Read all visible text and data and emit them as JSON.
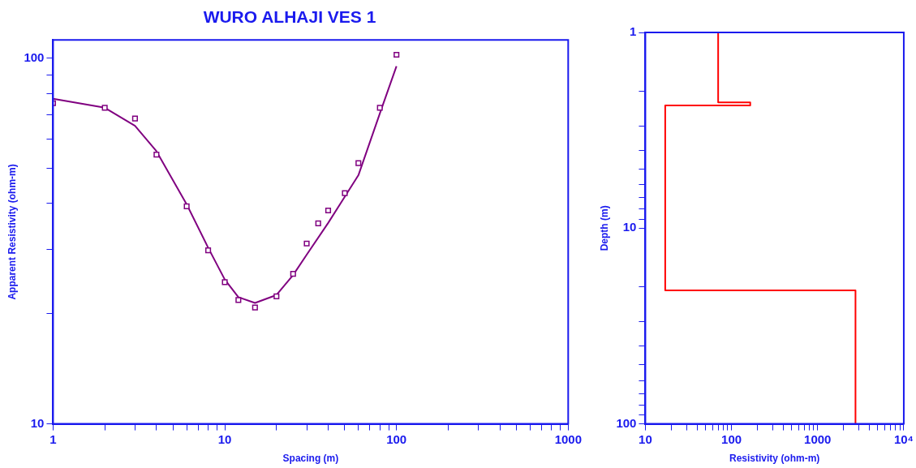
{
  "chart_data": [
    {
      "type": "scatter",
      "title": "WURO ALHAJI VES 1",
      "xlabel": "Spacing (m)",
      "ylabel": "Apparent Resistivity (ohm-m)",
      "log": "xy",
      "grid": false,
      "legend": false,
      "xlim": [
        1,
        1000
      ],
      "ylim": [
        10,
        112
      ],
      "xticks": [
        1,
        {
          "value": 2,
          "label": null
        },
        {
          "value": 3,
          "label": null
        },
        {
          "value": 4,
          "label": null
        },
        {
          "value": 5,
          "label": null
        },
        {
          "value": 6,
          "label": null
        },
        {
          "value": 7,
          "label": null
        },
        {
          "value": 8,
          "label": null
        },
        {
          "value": 9,
          "label": null
        },
        10,
        {
          "value": 20,
          "label": null
        },
        {
          "value": 30,
          "label": null
        },
        {
          "value": 40,
          "label": null
        },
        {
          "value": 50,
          "label": null
        },
        {
          "value": 60,
          "label": null
        },
        {
          "value": 70,
          "label": null
        },
        {
          "value": 80,
          "label": null
        },
        {
          "value": 90,
          "label": null
        },
        100,
        {
          "value": 200,
          "label": null
        },
        {
          "value": 300,
          "label": null
        },
        {
          "value": 400,
          "label": null
        },
        {
          "value": 500,
          "label": null
        },
        {
          "value": 600,
          "label": null
        },
        {
          "value": 700,
          "label": null
        },
        {
          "value": 800,
          "label": null
        },
        {
          "value": 900,
          "label": null
        },
        1000
      ],
      "yticks": [
        10,
        {
          "value": 20,
          "label": null
        },
        {
          "value": 30,
          "label": null
        },
        {
          "value": 40,
          "label": null
        },
        {
          "value": 50,
          "label": null
        },
        {
          "value": 60,
          "label": null
        },
        {
          "value": 70,
          "label": null
        },
        {
          "value": 80,
          "label": null
        },
        {
          "value": 90,
          "label": null
        },
        100
      ],
      "series": [
        {
          "marker": "square",
          "color": "#800080",
          "x": [
            1,
            2,
            3,
            4,
            6,
            8,
            10,
            12,
            15,
            20,
            25,
            30,
            35,
            40,
            50,
            60,
            80,
            100
          ],
          "values": [
            75.2,
            73.1,
            68.3,
            54.4,
            39.3,
            29.8,
            24.4,
            21.8,
            20.8,
            22.3,
            25.7,
            31.1,
            35.3,
            38.3,
            42.7,
            51.6,
            73.1,
            102
          ]
        },
        {
          "type": "line",
          "marker": "none",
          "color": "#800080",
          "x": [
            1,
            2,
            3,
            4,
            6,
            8,
            10,
            12,
            15,
            20,
            25,
            30,
            40,
            60,
            80,
            100
          ],
          "values": [
            77.3,
            73.1,
            65.2,
            55.6,
            39.8,
            30.3,
            24.8,
            22.2,
            21.4,
            22.5,
            25.5,
            29.0,
            35.4,
            47.8,
            70.5,
            94.9
          ]
        }
      ]
    },
    {
      "type": "line",
      "xlabel": "Resistivity (ohm-m)",
      "ylabel": "Depth (m)",
      "log": "xy",
      "grid": false,
      "legend": false,
      "xlim": [
        10,
        10000
      ],
      "ylim": [
        100,
        1
      ],
      "xticks": [
        10,
        {
          "value": 20,
          "label": null
        },
        {
          "value": 30,
          "label": null
        },
        {
          "value": 40,
          "label": null
        },
        {
          "value": 50,
          "label": null
        },
        {
          "value": 60,
          "label": null
        },
        {
          "value": 70,
          "label": null
        },
        {
          "value": 80,
          "label": null
        },
        {
          "value": 90,
          "label": null
        },
        100,
        {
          "value": 200,
          "label": null
        },
        {
          "value": 300,
          "label": null
        },
        {
          "value": 400,
          "label": null
        },
        {
          "value": 500,
          "label": null
        },
        {
          "value": 600,
          "label": null
        },
        {
          "value": 700,
          "label": null
        },
        {
          "value": 800,
          "label": null
        },
        {
          "value": 900,
          "label": null
        },
        1000,
        {
          "value": 2000,
          "label": null
        },
        {
          "value": 3000,
          "label": null
        },
        {
          "value": 4000,
          "label": null
        },
        {
          "value": 5000,
          "label": null
        },
        {
          "value": 6000,
          "label": null
        },
        {
          "value": 7000,
          "label": null
        },
        {
          "value": 8000,
          "label": null
        },
        {
          "value": 9000,
          "label": null
        },
        {
          "value": 10000,
          "label": "10⁴"
        }
      ],
      "yticks": [
        1,
        {
          "value": 2,
          "label": null
        },
        {
          "value": 3,
          "label": null
        },
        {
          "value": 4,
          "label": null
        },
        {
          "value": 5,
          "label": null
        },
        {
          "value": 6,
          "label": null
        },
        {
          "value": 7,
          "label": null
        },
        {
          "value": 8,
          "label": null
        },
        {
          "value": 9,
          "label": null
        },
        10,
        {
          "value": 20,
          "label": null
        },
        {
          "value": 30,
          "label": null
        },
        {
          "value": 40,
          "label": null
        },
        {
          "value": 50,
          "label": null
        },
        {
          "value": 60,
          "label": null
        },
        {
          "value": 70,
          "label": null
        },
        {
          "value": 80,
          "label": null
        },
        {
          "value": 90,
          "label": null
        },
        100
      ],
      "series": [
        {
          "marker": "none",
          "color": "#ff0000",
          "x": [
            70,
            70,
            165,
            165,
            17,
            17,
            2750,
            2750
          ],
          "values": [
            1,
            2.28,
            2.28,
            2.36,
            2.36,
            20.8,
            20.8,
            100
          ]
        }
      ]
    }
  ]
}
